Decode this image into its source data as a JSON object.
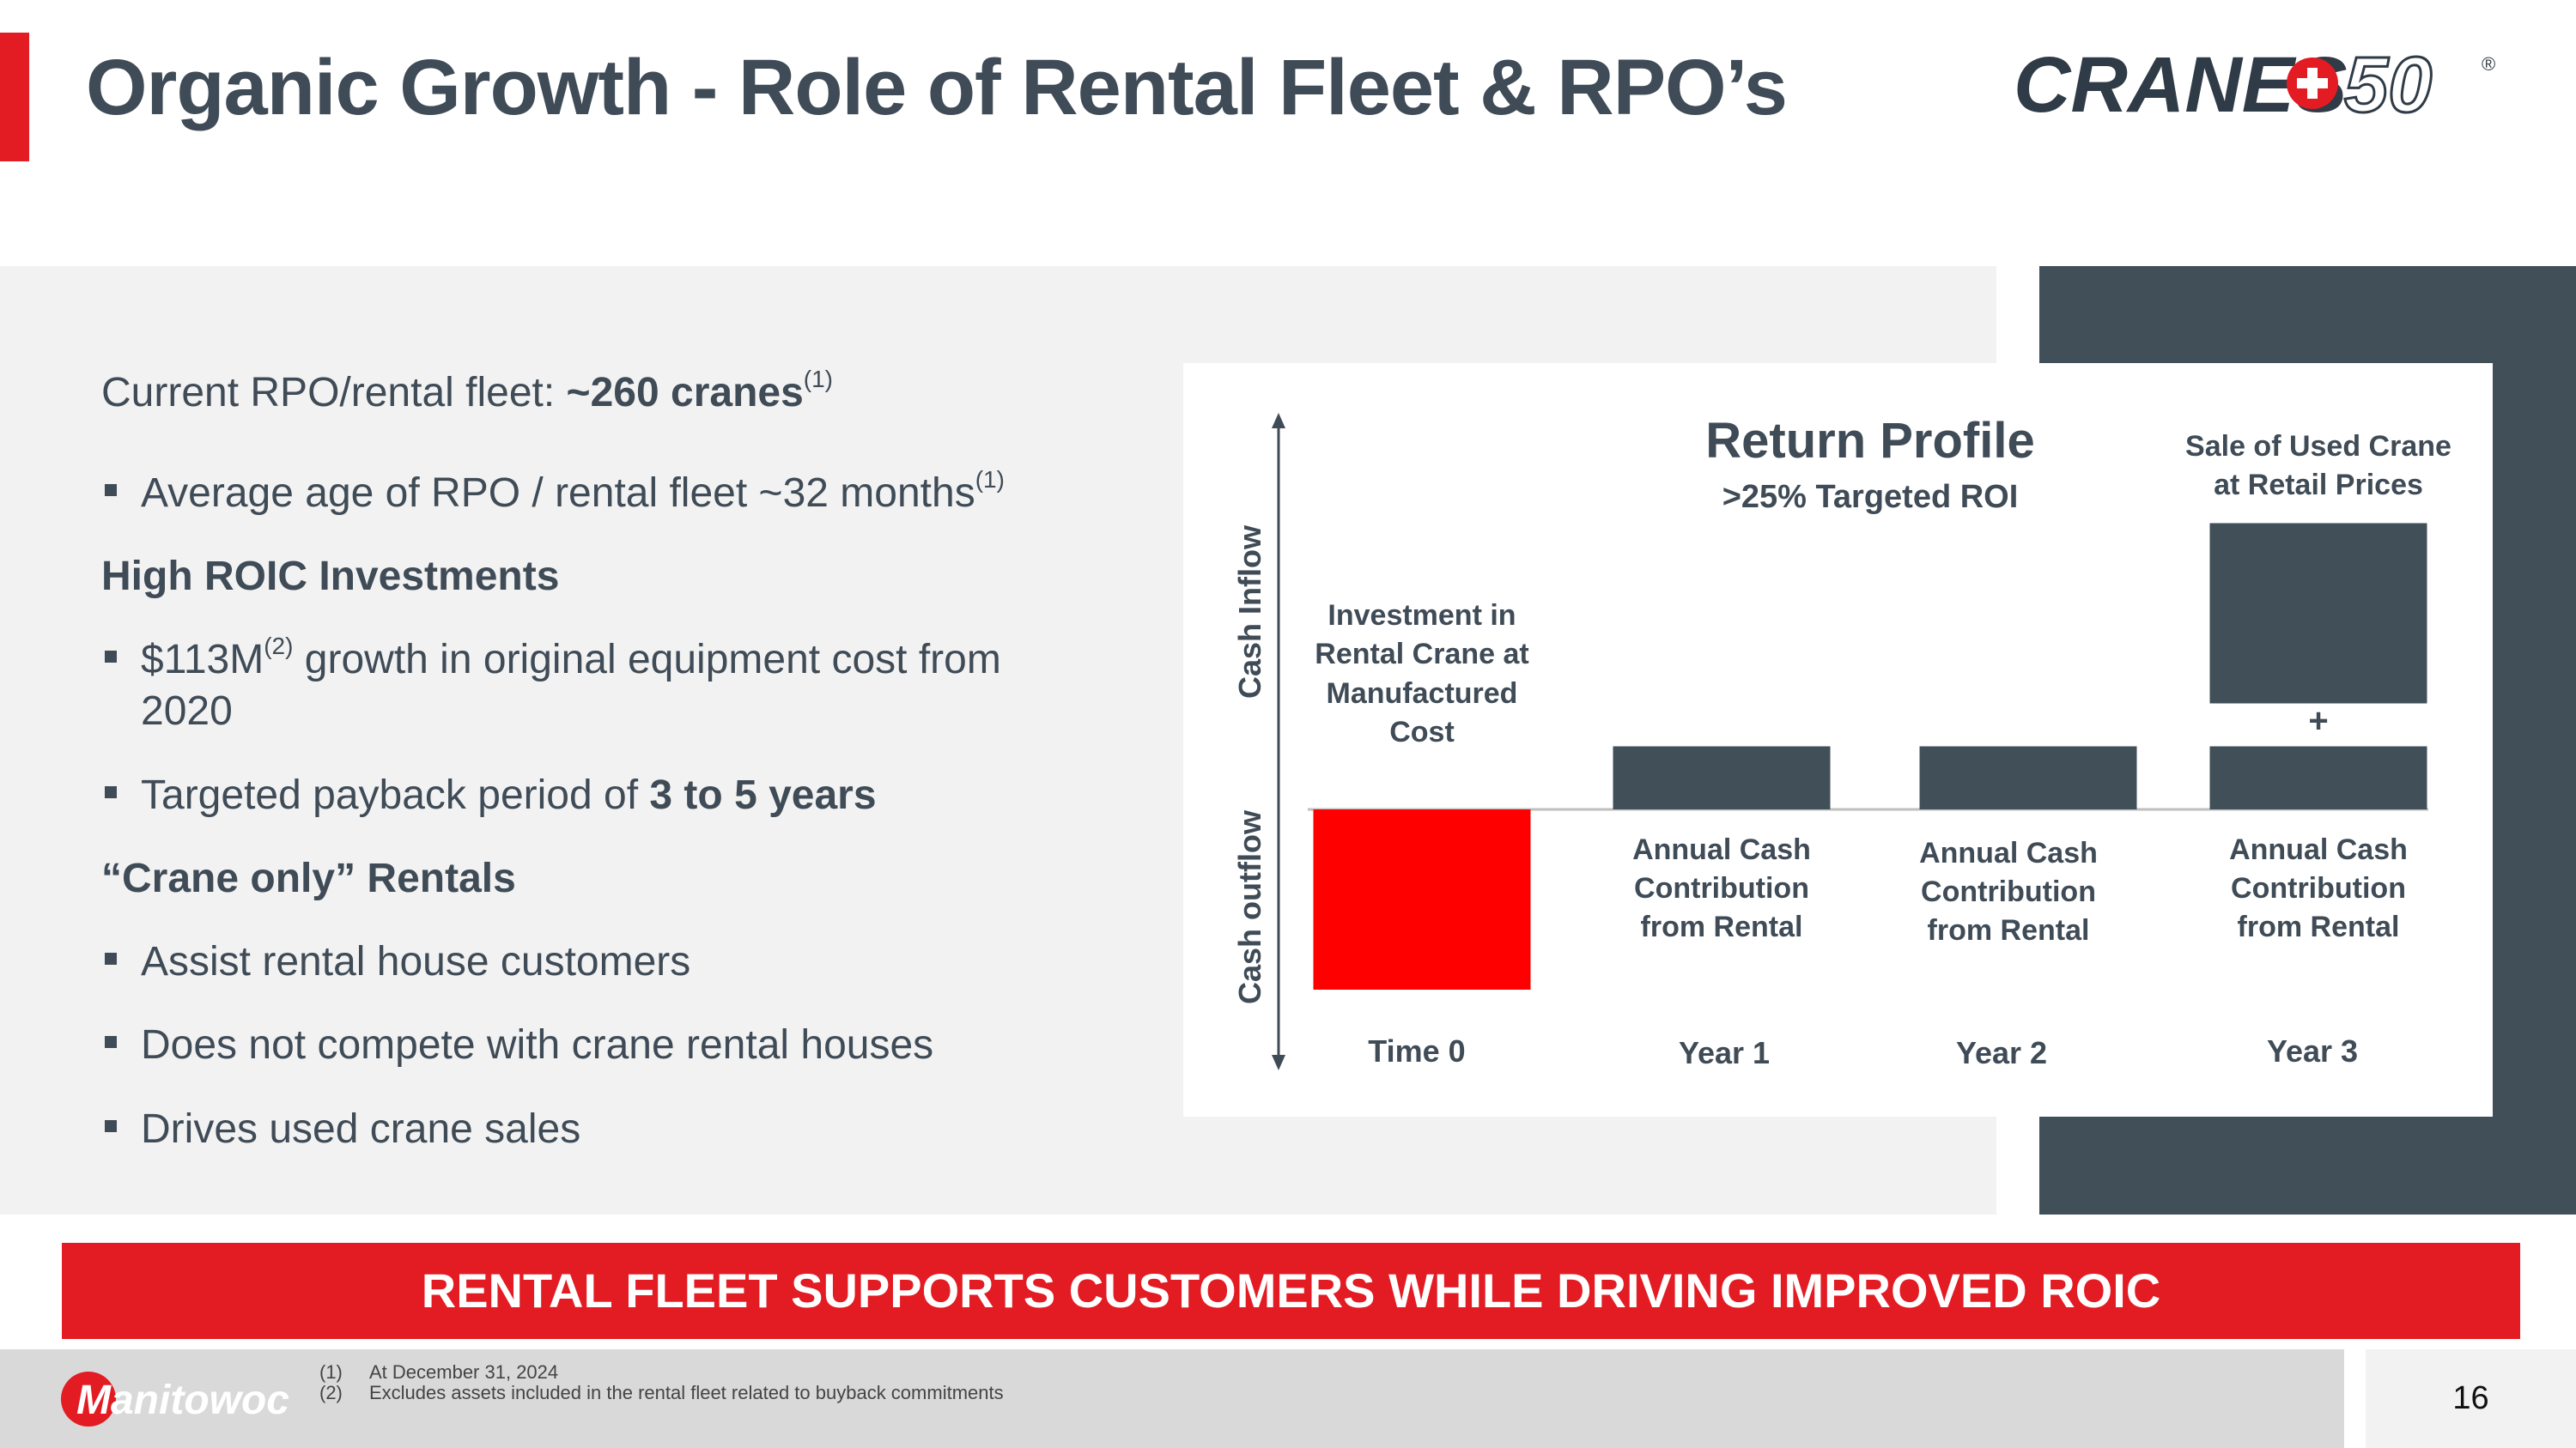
{
  "header": {
    "title": "Organic Growth - Role of Rental Fleet & RPO’s",
    "logo_text": "CRANES",
    "logo_number": "50",
    "logo_reg": "®"
  },
  "left": {
    "fleet_prefix": "Current RPO/rental fleet: ",
    "fleet_value": "~260 cranes",
    "fleet_sup": "(1)",
    "bullet_age": "Average age of RPO / rental fleet ~32 months",
    "bullet_age_sup": "(1)",
    "heading_roic": "High ROIC Investments",
    "bullet_growth_a": "$113M",
    "bullet_growth_sup": "(2)",
    "bullet_growth_b": " growth in original equipment cost from",
    "bullet_growth_c": "2020",
    "bullet_payback_a": "Targeted payback period of ",
    "bullet_payback_b": "3 to 5 years",
    "heading_crane_only": "“Crane only” Rentals",
    "bullet_assist": "Assist rental house customers",
    "bullet_compete": "Does not compete with crane rental houses",
    "bullet_used": "Drives used crane sales"
  },
  "chart_data": {
    "type": "bar",
    "title": "Return Profile",
    "subtitle": ">25% Targeted ROI",
    "ylabel_up": "Cash Inflow",
    "ylabel_down": "Cash outflow",
    "categories": [
      "Time 0",
      "Year 1",
      "Year 2",
      "Year 3"
    ],
    "series": [
      {
        "name": "Investment in Rental Crane at Manufactured Cost",
        "values": [
          -1.0,
          0,
          0,
          0
        ]
      },
      {
        "name": "Annual Cash Contribution from Rental",
        "values": [
          0,
          0.35,
          0.35,
          0.35
        ]
      },
      {
        "name": "Sale of Used Crane at Retail Prices",
        "values": [
          0,
          0,
          0,
          1.0
        ]
      }
    ],
    "colors": {
      "outflow": "#ff0000",
      "inflow": "#414f59"
    },
    "investment_label": [
      "Investment in",
      "Rental Crane at",
      "Manufactured",
      "Cost"
    ],
    "contribution_label": [
      "Annual Cash",
      "Contribution",
      "from Rental"
    ],
    "sale_label": [
      "Sale of Used Crane",
      "at Retail Prices"
    ],
    "plus": "+"
  },
  "banner": {
    "text": "RENTAL FLEET SUPPORTS CUSTOMERS WHILE DRIVING IMPROVED ROIC"
  },
  "footer": {
    "fn1_num": "(1)",
    "fn1_text": "At December 31, 2024",
    "fn2_num": "(2)",
    "fn2_text": "Excludes assets included in the rental fleet related to buyback commitments",
    "company": "Manitowoc",
    "page_number": "16"
  },
  "colors": {
    "accent": "#e31b23",
    "dark": "#414f59",
    "panel": "#f2f2f2"
  }
}
